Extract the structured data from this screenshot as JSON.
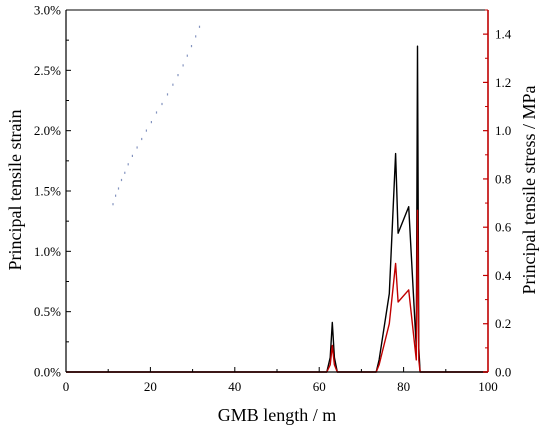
{
  "chart_data": {
    "type": "line",
    "title": "",
    "xlabel": "GMB length / m",
    "ylabel_left": "Principal tensile strain",
    "ylabel_right": "Principal tensile stress / MPa",
    "xlim": [
      0,
      100
    ],
    "ylim_left": [
      0,
      3.0
    ],
    "ylim_right": [
      0,
      1.5
    ],
    "x_ticks": [
      0,
      20,
      40,
      60,
      80,
      100
    ],
    "x_tick_labels": [
      "0",
      "20",
      "40",
      "60",
      "80",
      "100"
    ],
    "left_ticks": [
      0,
      0.5,
      1.0,
      1.5,
      2.0,
      2.5,
      3.0
    ],
    "left_tick_labels": [
      "0.0%",
      "0.5%",
      "1.0%",
      "1.5%",
      "2.0%",
      "2.5%",
      "3.0%"
    ],
    "right_ticks": [
      0,
      0.2,
      0.4,
      0.6,
      0.8,
      1.0,
      1.2,
      1.4
    ],
    "right_tick_labels": [
      "0.0",
      "0.2",
      "0.4",
      "0.6",
      "0.8",
      "1.0",
      "1.2",
      "1.4"
    ],
    "grid": false,
    "legend": "none",
    "colors": {
      "strain": "#000000",
      "stress": "#c00000",
      "right_axis": "#c00000",
      "dots": "#1e3a8a"
    },
    "series": [
      {
        "axis": "left",
        "color": "#000000",
        "x": [
          0,
          61.8,
          62.6,
          63.1,
          63.6,
          64.3,
          65.0,
          73.5,
          74.2,
          76.6,
          78.1,
          78.7,
          81.2,
          83.0,
          83.3,
          83.6,
          83.9,
          85.0,
          100
        ],
        "y": [
          0,
          0,
          0.12,
          0.41,
          0.12,
          0,
          0,
          0,
          0.1,
          0.65,
          1.81,
          1.15,
          1.37,
          0.2,
          2.7,
          0.2,
          0,
          0,
          0
        ]
      },
      {
        "axis": "right",
        "color": "#c00000",
        "x": [
          0,
          61.8,
          62.6,
          63.1,
          63.6,
          64.3,
          65.0,
          73.5,
          74.2,
          76.6,
          78.1,
          78.7,
          81.2,
          83.0,
          83.3,
          83.6,
          83.9,
          85.0,
          100
        ],
        "y": [
          0,
          0,
          0.03,
          0.11,
          0.03,
          0,
          0,
          0,
          0.03,
          0.2,
          0.45,
          0.29,
          0.34,
          0.05,
          0.67,
          0.05,
          0,
          0,
          0
        ]
      }
    ],
    "dotted_trace": {
      "color": "#1e3a8a",
      "x": [
        11.0,
        11.6,
        12.3,
        13.0,
        13.8,
        14.6,
        15.6,
        16.7,
        17.8,
        18.9,
        20.1,
        21.3,
        22.6,
        23.9,
        25.2,
        26.4,
        27.6,
        28.6,
        29.6,
        30.6,
        31.5
      ],
      "y": [
        1.4,
        1.47,
        1.53,
        1.6,
        1.66,
        1.73,
        1.8,
        1.87,
        1.94,
        2.01,
        2.08,
        2.16,
        2.23,
        2.31,
        2.39,
        2.47,
        2.55,
        2.63,
        2.71,
        2.79,
        2.87
      ]
    }
  }
}
